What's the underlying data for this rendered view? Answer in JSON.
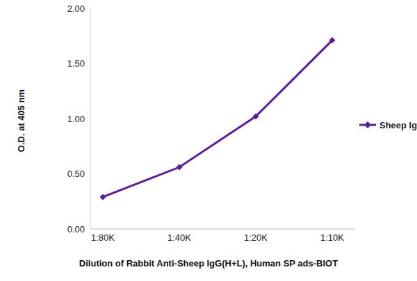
{
  "chart_data": {
    "type": "line",
    "categories": [
      "1:80K",
      "1:40K",
      "1:20K",
      "1:10K"
    ],
    "series": [
      {
        "name": "Sheep IgG",
        "color": "#5a1e9f",
        "marker": "diamond",
        "values": [
          0.29,
          0.56,
          1.02,
          1.71
        ]
      }
    ],
    "ylim": [
      0,
      2
    ],
    "yticks": [
      {
        "value": 0,
        "label": "0.00"
      },
      {
        "value": 0.5,
        "label": "0.50"
      },
      {
        "value": 1,
        "label": "1.00"
      },
      {
        "value": 1.5,
        "label": "1.50"
      },
      {
        "value": 2,
        "label": "2.00"
      }
    ],
    "x_label": "Dilution of Rabbit Anti-Sheep IgG(H+L), Human SP ads-BIOT",
    "y_label": "O.D. at 405 nm",
    "grid": false,
    "legend": "right"
  }
}
